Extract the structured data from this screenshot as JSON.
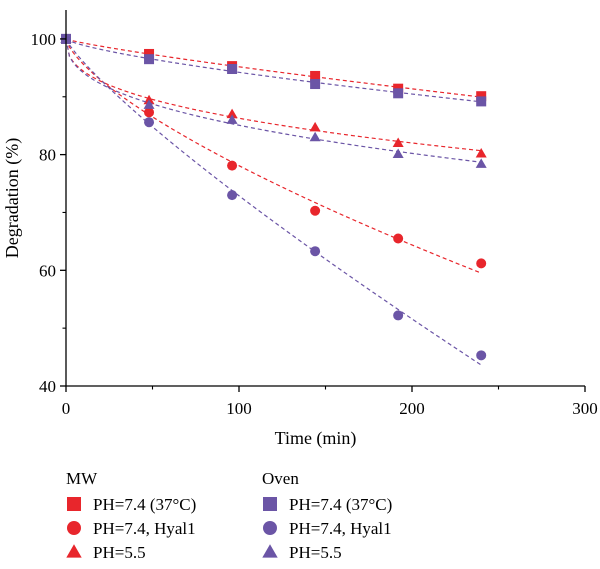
{
  "chart_data": {
    "type": "scatter",
    "xlabel": "Time (min)",
    "ylabel": "Degradation (%)",
    "xlim": [
      0,
      300
    ],
    "ylim": [
      40,
      105
    ],
    "xticks": [
      "0",
      "100",
      "200",
      "300"
    ],
    "yticks": [
      "40",
      "60",
      "80",
      "100"
    ],
    "grid": false,
    "legend_placement": "bottom",
    "legend_groups": [
      "MW",
      "Oven"
    ],
    "x": [
      0,
      48,
      96,
      144,
      192,
      240
    ],
    "series": [
      {
        "group": "MW",
        "name": "PH=7.4 (37°C)",
        "marker": "square",
        "color": "#e8262c",
        "values": [
          100,
          97.4,
          95.3,
          93.6,
          91.4,
          90.1
        ]
      },
      {
        "group": "MW",
        "name": "PH=7.4, Hyal1",
        "marker": "circle",
        "color": "#e8262c",
        "values": [
          100,
          87.3,
          78.1,
          70.3,
          65.5,
          61.2
        ]
      },
      {
        "group": "MW",
        "name": "PH=5.5",
        "marker": "triangle",
        "color": "#e8262c",
        "values": [
          100,
          89.4,
          87.0,
          84.7,
          82.0,
          80.2
        ]
      },
      {
        "group": "Oven",
        "name": "PH=7.4 (37°C)",
        "marker": "square",
        "color": "#6b55a6",
        "values": [
          100,
          96.5,
          94.8,
          92.2,
          90.6,
          89.2
        ]
      },
      {
        "group": "Oven",
        "name": "PH=7.4, Hyal1",
        "marker": "circle",
        "color": "#6b55a6",
        "values": [
          100,
          85.6,
          73.0,
          63.3,
          52.2,
          45.3
        ]
      },
      {
        "group": "Oven",
        "name": "PH=5.5",
        "marker": "triangle",
        "color": "#6b55a6",
        "values": [
          100,
          88.6,
          86.0,
          83.0,
          80.1,
          78.4
        ]
      }
    ]
  }
}
